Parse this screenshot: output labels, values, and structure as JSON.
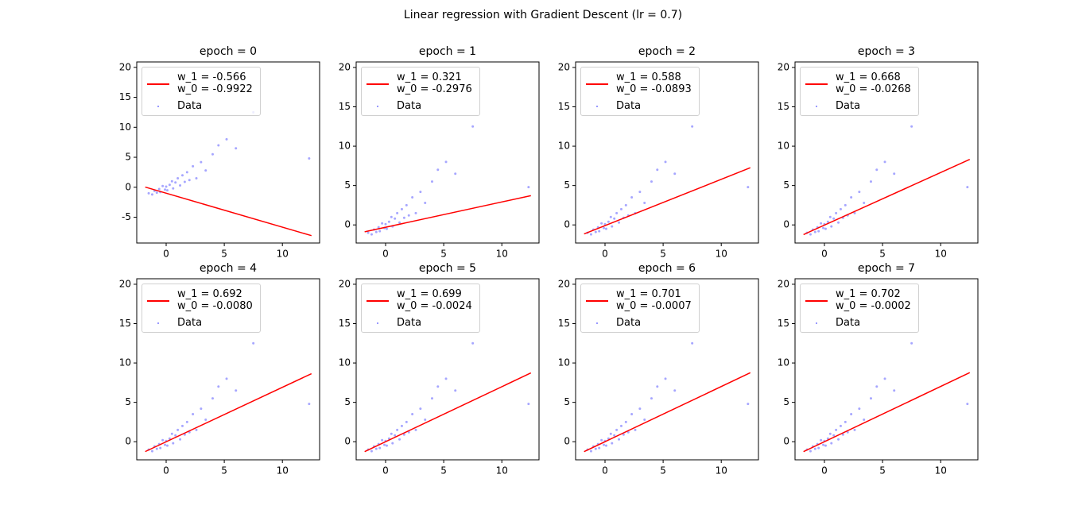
{
  "title": "Linear regression with Gradient Descent (lr = 0.7)",
  "chart_data": [
    {
      "type": "scatter",
      "title": "epoch = 0",
      "xlim": [
        -2.53,
        13.2
      ],
      "ylim": [
        -9.3,
        20.9
      ],
      "xticks": [
        0,
        5,
        10
      ],
      "yticks": [
        -5,
        0,
        5,
        10,
        15,
        20
      ],
      "series": [
        {
          "name": "w_1 = -0.566\nw_0 = -0.9922",
          "type": "line",
          "color": "red",
          "x": [
            -1.8,
            12.5
          ],
          "values": [
            0.027,
            -8.07
          ]
        },
        {
          "name": "Data",
          "color": "blue",
          "x": [
            -1.5,
            -1.2,
            -1.0,
            -0.8,
            -0.6,
            -0.5,
            -0.3,
            -0.1,
            0,
            0.1,
            0.3,
            0.5,
            0.6,
            0.8,
            1.0,
            1.2,
            1.4,
            1.6,
            1.8,
            2.0,
            2.3,
            2.6,
            3.0,
            3.4,
            4.0,
            4.5,
            5.2,
            6.0,
            7.5,
            12.3
          ],
          "values": [
            -1.0,
            -1.2,
            -0.6,
            -0.9,
            -0.3,
            -0.8,
            0.2,
            -0.4,
            0.1,
            -0.5,
            0.4,
            1.0,
            -0.2,
            0.8,
            1.5,
            0.3,
            2.0,
            0.9,
            2.5,
            1.2,
            3.5,
            1.5,
            4.2,
            2.8,
            5.5,
            7.0,
            8.0,
            6.5,
            12.5,
            4.8
          ]
        }
      ]
    },
    {
      "type": "scatter",
      "title": "epoch = 1",
      "xlim": [
        -2.53,
        13.2
      ],
      "ylim": [
        -2.3,
        20.7
      ],
      "xticks": [
        0,
        5,
        10
      ],
      "yticks": [
        0,
        5,
        10,
        15,
        20
      ],
      "series": [
        {
          "name": "w_1 = 0.321\nw_0 = -0.2976",
          "type": "line",
          "color": "red",
          "x": [
            -1.8,
            12.5
          ],
          "values": [
            -0.875,
            3.715
          ]
        },
        {
          "name": "Data",
          "color": "blue",
          "x": [
            -1.5,
            -1.2,
            -1.0,
            -0.8,
            -0.6,
            -0.5,
            -0.3,
            -0.1,
            0,
            0.1,
            0.3,
            0.5,
            0.6,
            0.8,
            1.0,
            1.2,
            1.4,
            1.6,
            1.8,
            2.0,
            2.3,
            2.6,
            3.0,
            3.4,
            4.0,
            4.5,
            5.2,
            6.0,
            7.5,
            12.3
          ],
          "values": [
            -1.0,
            -1.2,
            -0.6,
            -0.9,
            -0.3,
            -0.8,
            0.2,
            -0.4,
            0.1,
            -0.5,
            0.4,
            1.0,
            -0.2,
            0.8,
            1.5,
            0.3,
            2.0,
            0.9,
            2.5,
            1.2,
            3.5,
            1.5,
            4.2,
            2.8,
            5.5,
            7.0,
            8.0,
            6.5,
            12.5,
            4.8
          ]
        }
      ]
    },
    {
      "type": "scatter",
      "title": "epoch = 2",
      "xlim": [
        -2.53,
        13.2
      ],
      "ylim": [
        -2.3,
        20.7
      ],
      "xticks": [
        0,
        5,
        10
      ],
      "yticks": [
        0,
        5,
        10,
        15,
        20
      ],
      "series": [
        {
          "name": "w_1 = 0.588\nw_0 = -0.0893",
          "type": "line",
          "color": "red",
          "x": [
            -1.8,
            12.5
          ],
          "values": [
            -1.147,
            7.261
          ]
        },
        {
          "name": "Data",
          "color": "blue",
          "x": [
            -1.5,
            -1.2,
            -1.0,
            -0.8,
            -0.6,
            -0.5,
            -0.3,
            -0.1,
            0,
            0.1,
            0.3,
            0.5,
            0.6,
            0.8,
            1.0,
            1.2,
            1.4,
            1.6,
            1.8,
            2.0,
            2.3,
            2.6,
            3.0,
            3.4,
            4.0,
            4.5,
            5.2,
            6.0,
            7.5,
            12.3
          ],
          "values": [
            -1.0,
            -1.2,
            -0.6,
            -0.9,
            -0.3,
            -0.8,
            0.2,
            -0.4,
            0.1,
            -0.5,
            0.4,
            1.0,
            -0.2,
            0.8,
            1.5,
            0.3,
            2.0,
            0.9,
            2.5,
            1.2,
            3.5,
            1.5,
            4.2,
            2.8,
            5.5,
            7.0,
            8.0,
            6.5,
            12.5,
            4.8
          ]
        }
      ]
    },
    {
      "type": "scatter",
      "title": "epoch = 3",
      "xlim": [
        -2.53,
        13.2
      ],
      "ylim": [
        -2.3,
        20.7
      ],
      "xticks": [
        0,
        5,
        10
      ],
      "yticks": [
        0,
        5,
        10,
        15,
        20
      ],
      "series": [
        {
          "name": "w_1 = 0.668\nw_0 = -0.0268",
          "type": "line",
          "color": "red",
          "x": [
            -1.8,
            12.5
          ],
          "values": [
            -1.229,
            8.323
          ]
        },
        {
          "name": "Data",
          "color": "blue",
          "x": [
            -1.5,
            -1.2,
            -1.0,
            -0.8,
            -0.6,
            -0.5,
            -0.3,
            -0.1,
            0,
            0.1,
            0.3,
            0.5,
            0.6,
            0.8,
            1.0,
            1.2,
            1.4,
            1.6,
            1.8,
            2.0,
            2.3,
            2.6,
            3.0,
            3.4,
            4.0,
            4.5,
            5.2,
            6.0,
            7.5,
            12.3
          ],
          "values": [
            -1.0,
            -1.2,
            -0.6,
            -0.9,
            -0.3,
            -0.8,
            0.2,
            -0.4,
            0.1,
            -0.5,
            0.4,
            1.0,
            -0.2,
            0.8,
            1.5,
            0.3,
            2.0,
            0.9,
            2.5,
            1.2,
            3.5,
            1.5,
            4.2,
            2.8,
            5.5,
            7.0,
            8.0,
            6.5,
            12.5,
            4.8
          ]
        }
      ]
    },
    {
      "type": "scatter",
      "title": "epoch = 4",
      "xlim": [
        -2.53,
        13.2
      ],
      "ylim": [
        -2.3,
        20.7
      ],
      "xticks": [
        0,
        5,
        10
      ],
      "yticks": [
        0,
        5,
        10,
        15,
        20
      ],
      "series": [
        {
          "name": "w_1 = 0.692\nw_0 = -0.0080",
          "type": "line",
          "color": "red",
          "x": [
            -1.8,
            12.5
          ],
          "values": [
            -1.254,
            8.642
          ]
        },
        {
          "name": "Data",
          "color": "blue",
          "x": [
            -1.5,
            -1.2,
            -1.0,
            -0.8,
            -0.6,
            -0.5,
            -0.3,
            -0.1,
            0,
            0.1,
            0.3,
            0.5,
            0.6,
            0.8,
            1.0,
            1.2,
            1.4,
            1.6,
            1.8,
            2.0,
            2.3,
            2.6,
            3.0,
            3.4,
            4.0,
            4.5,
            5.2,
            6.0,
            7.5,
            12.3
          ],
          "values": [
            -1.0,
            -1.2,
            -0.6,
            -0.9,
            -0.3,
            -0.8,
            0.2,
            -0.4,
            0.1,
            -0.5,
            0.4,
            1.0,
            -0.2,
            0.8,
            1.5,
            0.3,
            2.0,
            0.9,
            2.5,
            1.2,
            3.5,
            1.5,
            4.2,
            2.8,
            5.5,
            7.0,
            8.0,
            6.5,
            12.5,
            4.8
          ]
        }
      ]
    },
    {
      "type": "scatter",
      "title": "epoch = 5",
      "xlim": [
        -2.53,
        13.2
      ],
      "ylim": [
        -2.3,
        20.7
      ],
      "xticks": [
        0,
        5,
        10
      ],
      "yticks": [
        0,
        5,
        10,
        15,
        20
      ],
      "series": [
        {
          "name": "w_1 = 0.699\nw_0 = -0.0024",
          "type": "line",
          "color": "red",
          "x": [
            -1.8,
            12.5
          ],
          "values": [
            -1.261,
            8.735
          ]
        },
        {
          "name": "Data",
          "color": "blue",
          "x": [
            -1.5,
            -1.2,
            -1.0,
            -0.8,
            -0.6,
            -0.5,
            -0.3,
            -0.1,
            0,
            0.1,
            0.3,
            0.5,
            0.6,
            0.8,
            1.0,
            1.2,
            1.4,
            1.6,
            1.8,
            2.0,
            2.3,
            2.6,
            3.0,
            3.4,
            4.0,
            4.5,
            5.2,
            6.0,
            7.5,
            12.3
          ],
          "values": [
            -1.0,
            -1.2,
            -0.6,
            -0.9,
            -0.3,
            -0.8,
            0.2,
            -0.4,
            0.1,
            -0.5,
            0.4,
            1.0,
            -0.2,
            0.8,
            1.5,
            0.3,
            2.0,
            0.9,
            2.5,
            1.2,
            3.5,
            1.5,
            4.2,
            2.8,
            5.5,
            7.0,
            8.0,
            6.5,
            12.5,
            4.8
          ]
        }
      ]
    },
    {
      "type": "scatter",
      "title": "epoch = 6",
      "xlim": [
        -2.53,
        13.2
      ],
      "ylim": [
        -2.3,
        20.7
      ],
      "xticks": [
        0,
        5,
        10
      ],
      "yticks": [
        0,
        5,
        10,
        15,
        20
      ],
      "series": [
        {
          "name": "w_1 = 0.701\nw_0 = -0.0007",
          "type": "line",
          "color": "red",
          "x": [
            -1.8,
            12.5
          ],
          "values": [
            -1.262,
            8.762
          ]
        },
        {
          "name": "Data",
          "color": "blue",
          "x": [
            -1.5,
            -1.2,
            -1.0,
            -0.8,
            -0.6,
            -0.5,
            -0.3,
            -0.1,
            0,
            0.1,
            0.3,
            0.5,
            0.6,
            0.8,
            1.0,
            1.2,
            1.4,
            1.6,
            1.8,
            2.0,
            2.3,
            2.6,
            3.0,
            3.4,
            4.0,
            4.5,
            5.2,
            6.0,
            7.5,
            12.3
          ],
          "values": [
            -1.0,
            -1.2,
            -0.6,
            -0.9,
            -0.3,
            -0.8,
            0.2,
            -0.4,
            0.1,
            -0.5,
            0.4,
            1.0,
            -0.2,
            0.8,
            1.5,
            0.3,
            2.0,
            0.9,
            2.5,
            1.2,
            3.5,
            1.5,
            4.2,
            2.8,
            5.5,
            7.0,
            8.0,
            6.5,
            12.5,
            4.8
          ]
        }
      ]
    },
    {
      "type": "scatter",
      "title": "epoch = 7",
      "xlim": [
        -2.53,
        13.2
      ],
      "ylim": [
        -2.3,
        20.7
      ],
      "xticks": [
        0,
        5,
        10
      ],
      "yticks": [
        0,
        5,
        10,
        15,
        20
      ],
      "series": [
        {
          "name": "w_1 = 0.702\nw_0 = -0.0002",
          "type": "line",
          "color": "red",
          "x": [
            -1.8,
            12.5
          ],
          "values": [
            -1.264,
            8.775
          ]
        },
        {
          "name": "Data",
          "color": "blue",
          "x": [
            -1.5,
            -1.2,
            -1.0,
            -0.8,
            -0.6,
            -0.5,
            -0.3,
            -0.1,
            0,
            0.1,
            0.3,
            0.5,
            0.6,
            0.8,
            1.0,
            1.2,
            1.4,
            1.6,
            1.8,
            2.0,
            2.3,
            2.6,
            3.0,
            3.4,
            4.0,
            4.5,
            5.2,
            6.0,
            7.5,
            12.3
          ],
          "values": [
            -1.0,
            -1.2,
            -0.6,
            -0.9,
            -0.3,
            -0.8,
            0.2,
            -0.4,
            0.1,
            -0.5,
            0.4,
            1.0,
            -0.2,
            0.8,
            1.5,
            0.3,
            2.0,
            0.9,
            2.5,
            1.2,
            3.5,
            1.5,
            4.2,
            2.8,
            5.5,
            7.0,
            8.0,
            6.5,
            12.5,
            4.8
          ]
        }
      ]
    }
  ]
}
